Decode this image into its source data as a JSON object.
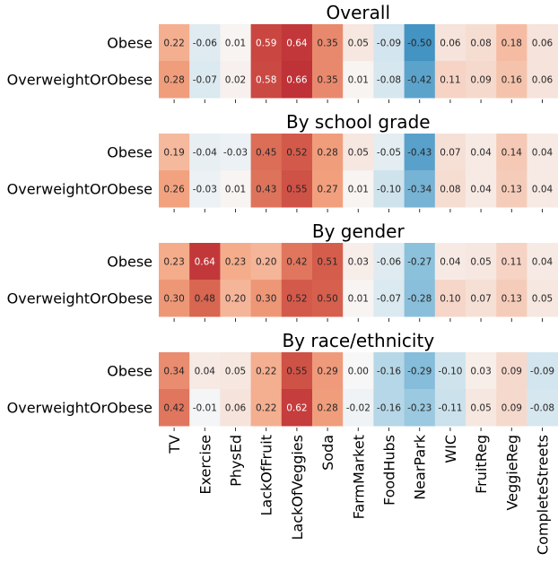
{
  "chart_data": {
    "type": "heatmap",
    "colormap": "diverging red-blue (positive red, negative blue), centered at 0",
    "vmin": -1,
    "vmax": 1,
    "columns": [
      "TV",
      "Exercise",
      "PhysEd",
      "LackOfFruit",
      "LackOfVeggies",
      "Soda",
      "FarmMarket",
      "FoodHubs",
      "NearPark",
      "WIC",
      "FruitReg",
      "VeggieReg",
      "CompleteStreets"
    ],
    "rows": [
      "Obese",
      "OverweightOrObese"
    ],
    "panels": [
      {
        "title": "Overall",
        "values": [
          [
            "0.22",
            "-0.06",
            "0.01",
            "0.59",
            "0.64",
            "0.35",
            "0.05",
            "-0.09",
            "-0.50",
            "0.06",
            "0.08",
            "0.18",
            "0.06"
          ],
          [
            "0.28",
            "-0.07",
            "0.02",
            "0.58",
            "0.66",
            "0.35",
            "0.01",
            "-0.08",
            "-0.42",
            "0.11",
            "0.09",
            "0.16",
            "0.06"
          ]
        ]
      },
      {
        "title": "By school grade",
        "values": [
          [
            "0.19",
            "-0.04",
            "-0.03",
            "0.45",
            "0.52",
            "0.28",
            "0.05",
            "-0.05",
            "-0.43",
            "0.07",
            "0.04",
            "0.14",
            "0.04"
          ],
          [
            "0.26",
            "-0.03",
            "0.01",
            "0.43",
            "0.55",
            "0.27",
            "0.01",
            "-0.10",
            "-0.34",
            "0.08",
            "0.04",
            "0.13",
            "0.04"
          ]
        ]
      },
      {
        "title": "By gender",
        "values": [
          [
            "0.23",
            "0.64",
            "0.23",
            "0.20",
            "0.42",
            "0.51",
            "0.03",
            "-0.06",
            "-0.27",
            "0.04",
            "0.05",
            "0.11",
            "0.04"
          ],
          [
            "0.30",
            "0.48",
            "0.20",
            "0.30",
            "0.52",
            "0.50",
            "0.01",
            "-0.07",
            "-0.28",
            "0.10",
            "0.07",
            "0.13",
            "0.05"
          ]
        ]
      },
      {
        "title": "By race/ethnicity",
        "values": [
          [
            "0.34",
            "0.04",
            "0.05",
            "0.22",
            "0.55",
            "0.29",
            "0.00",
            "-0.16",
            "-0.29",
            "-0.10",
            "0.03",
            "0.09",
            "-0.09"
          ],
          [
            "0.42",
            "-0.01",
            "0.06",
            "0.22",
            "0.62",
            "0.28",
            "-0.02",
            "-0.16",
            "-0.23",
            "-0.11",
            "0.05",
            "0.09",
            "-0.08"
          ]
        ]
      }
    ]
  }
}
